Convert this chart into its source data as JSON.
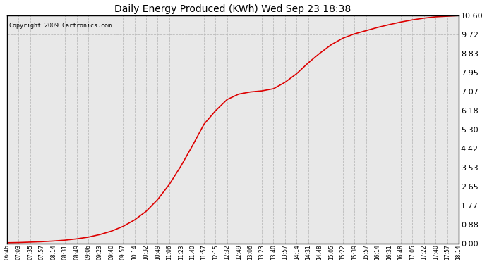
{
  "title": "Daily Energy Produced (KWh) Wed Sep 23 18:38",
  "copyright": "Copyright 2009 Cartronics.com",
  "line_color": "#dd0000",
  "bg_color": "#ffffff",
  "plot_bg_color": "#e8e8e8",
  "grid_color": "#bbbbbb",
  "grid_style": "--",
  "yticks": [
    0.0,
    0.88,
    1.77,
    2.65,
    3.53,
    4.42,
    5.3,
    6.18,
    7.07,
    7.95,
    8.83,
    9.72,
    10.6
  ],
  "ylim": [
    0.0,
    10.6
  ],
  "xtick_labels": [
    "06:46",
    "07:03",
    "07:35",
    "07:57",
    "08:14",
    "08:31",
    "08:49",
    "09:06",
    "09:23",
    "09:40",
    "09:57",
    "10:14",
    "10:32",
    "10:49",
    "11:06",
    "11:23",
    "11:40",
    "11:57",
    "12:15",
    "12:32",
    "12:49",
    "13:06",
    "13:23",
    "13:40",
    "13:57",
    "14:14",
    "14:31",
    "14:48",
    "15:05",
    "15:22",
    "15:39",
    "15:57",
    "16:14",
    "16:31",
    "16:48",
    "17:05",
    "17:22",
    "17:40",
    "17:57",
    "18:14"
  ],
  "data_x": [
    0,
    1,
    2,
    3,
    4,
    5,
    6,
    7,
    8,
    9,
    10,
    11,
    12,
    13,
    14,
    15,
    16,
    17,
    18,
    19,
    20,
    21,
    22,
    23,
    24,
    25,
    26,
    27,
    28,
    29,
    30,
    31,
    32,
    33,
    34,
    35,
    36,
    37,
    38,
    39
  ],
  "data_y": [
    0.04,
    0.05,
    0.07,
    0.09,
    0.12,
    0.16,
    0.22,
    0.3,
    0.42,
    0.58,
    0.8,
    1.1,
    1.5,
    2.05,
    2.75,
    3.6,
    4.55,
    5.55,
    6.18,
    6.7,
    6.95,
    7.05,
    7.1,
    7.2,
    7.5,
    7.9,
    8.4,
    8.85,
    9.25,
    9.55,
    9.75,
    9.9,
    10.05,
    10.18,
    10.3,
    10.4,
    10.48,
    10.54,
    10.57,
    10.6
  ]
}
